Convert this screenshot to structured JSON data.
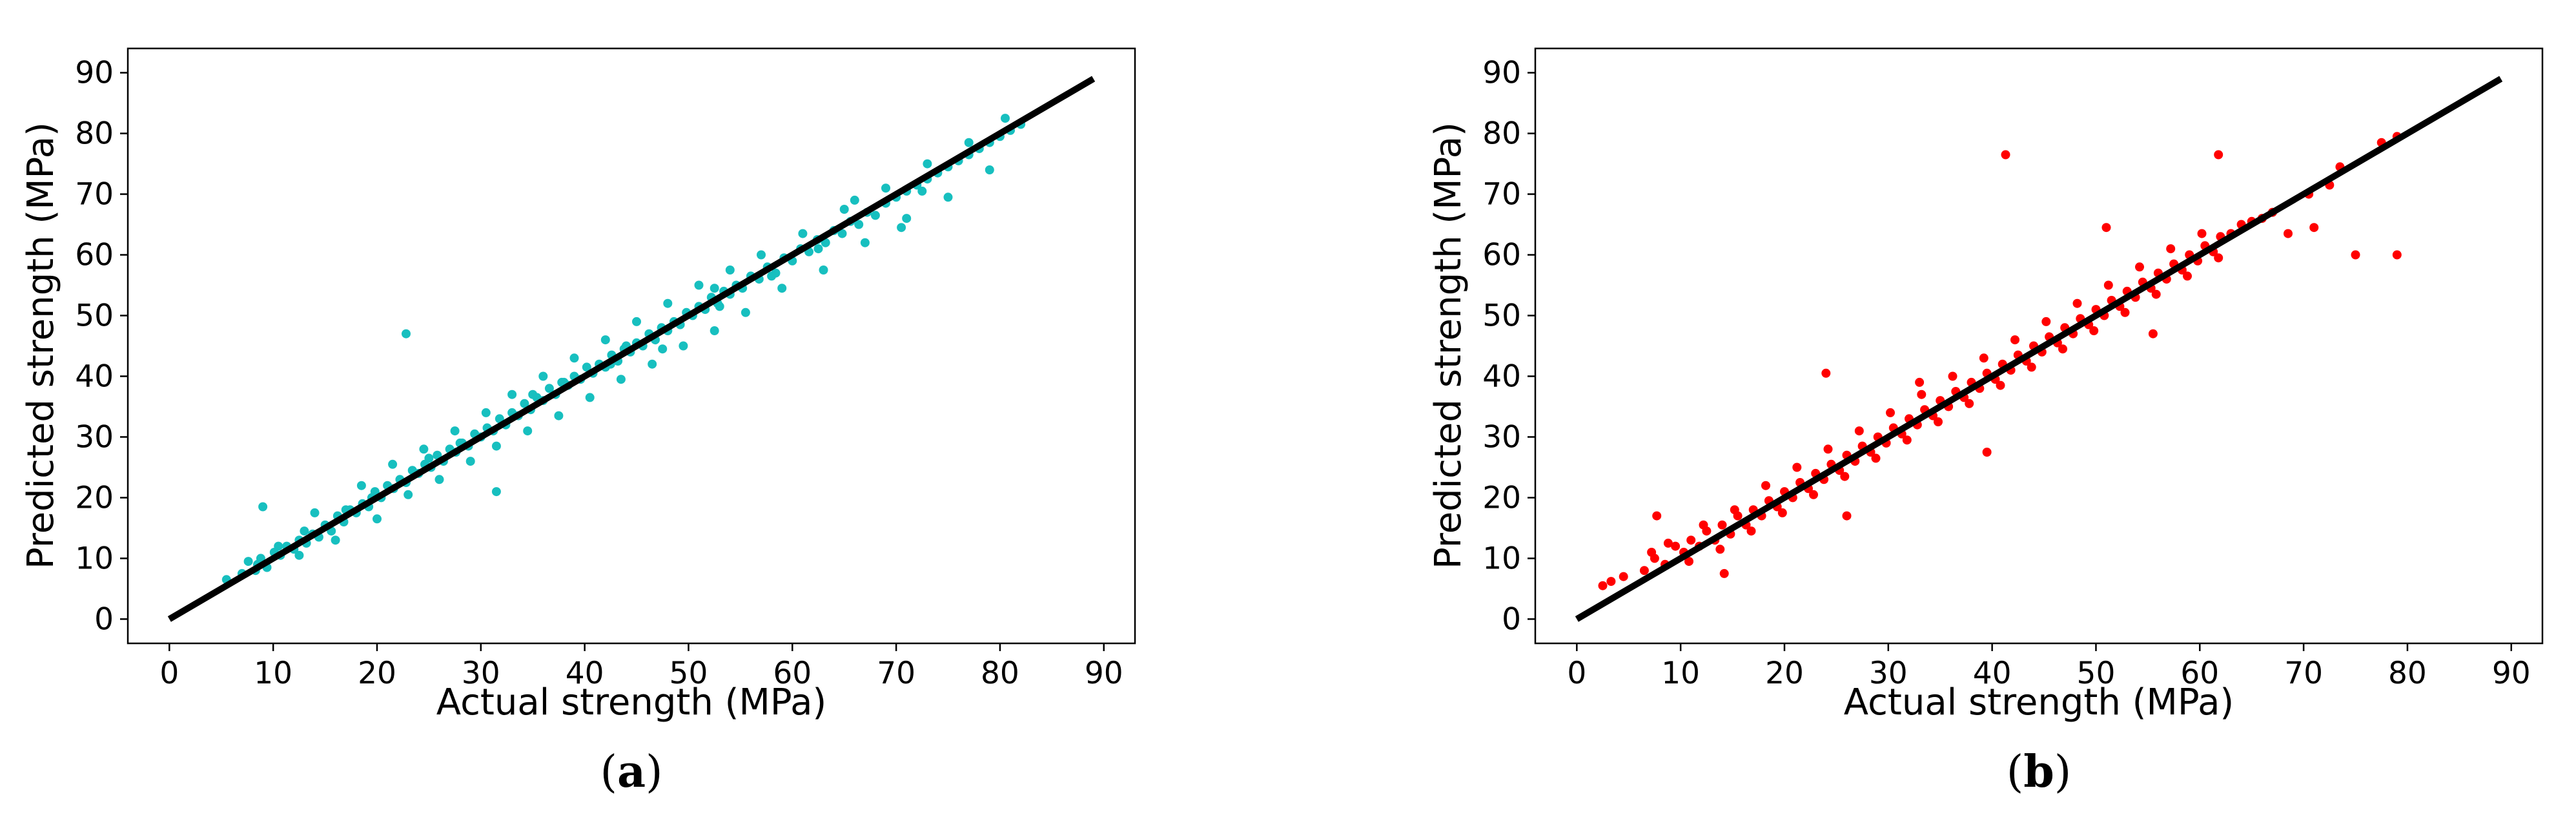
{
  "chart_data": [
    {
      "type": "scatter",
      "panel_label": "a",
      "xlabel": "Actual strength (MPa)",
      "ylabel": "Predicted strength (MPa)",
      "xlim": [
        -4,
        93
      ],
      "ylim": [
        -4,
        94
      ],
      "xticks": [
        0,
        10,
        20,
        30,
        40,
        50,
        60,
        70,
        80,
        90
      ],
      "yticks": [
        0,
        10,
        20,
        30,
        40,
        50,
        60,
        70,
        80,
        90
      ],
      "grid": false,
      "marker_color": "#17BFBF",
      "reference_line": {
        "x": [
          0,
          89
        ],
        "y": [
          0,
          89
        ],
        "color": "#000000"
      },
      "x": [
        5.5,
        7,
        7.6,
        8.3,
        8.8,
        9.4,
        10.1,
        10.7,
        11.3,
        12,
        12.5,
        13.2,
        13.8,
        14.4,
        15,
        15.6,
        16.2,
        16.8,
        17.4,
        18,
        18.6,
        19.2,
        19.8,
        20.4,
        21,
        21.6,
        22.2,
        22.8,
        23.4,
        24,
        24.6,
        25.2,
        25.8,
        26.4,
        27,
        27.6,
        28.2,
        28.8,
        29.4,
        30,
        30.6,
        31.2,
        31.8,
        32.4,
        33,
        33.6,
        34.2,
        34.8,
        35.4,
        36,
        36.6,
        37.2,
        37.8,
        38.4,
        39,
        39.6,
        40.2,
        40.8,
        41.4,
        42,
        42.6,
        43.2,
        43.8,
        44.4,
        45,
        45.6,
        46.2,
        46.8,
        47.4,
        48,
        48.6,
        49.2,
        49.8,
        50.4,
        51,
        51.6,
        52.2,
        52.8,
        53.4,
        54,
        54.6,
        55.2,
        56,
        56.8,
        57.6,
        58.4,
        59.2,
        60,
        60.8,
        61.6,
        62.4,
        63.2,
        64,
        64.8,
        65.6,
        66.4,
        67.2,
        68,
        69,
        70,
        71,
        72,
        73,
        74,
        75,
        76,
        77,
        78,
        79,
        80,
        81,
        82,
        9,
        12.5,
        14,
        16,
        18.5,
        20,
        21.5,
        23,
        24.5,
        26,
        27.5,
        29,
        30.5,
        31.5,
        33,
        34.5,
        36,
        37.5,
        39,
        40.5,
        42,
        43.5,
        45,
        46.5,
        48,
        49.5,
        51,
        52.5,
        54,
        55.5,
        57,
        59,
        61,
        63,
        65,
        67,
        69,
        71,
        73,
        75,
        77,
        79,
        22.8,
        31.5,
        8.5,
        13,
        19.5,
        25,
        35,
        44,
        47.5,
        52.5,
        58,
        66,
        70.5,
        80.5,
        10.5,
        17,
        28,
        38,
        42.5,
        53,
        62.5,
        72.5
      ],
      "y": [
        6.5,
        7.5,
        9.5,
        8,
        10,
        8.5,
        11,
        10.5,
        12,
        11.5,
        13,
        12.5,
        14,
        13.5,
        15.5,
        14.5,
        17,
        16,
        18,
        17.5,
        19,
        18.5,
        21,
        20,
        22,
        21.5,
        23,
        22.5,
        24.5,
        24,
        25.5,
        25,
        27,
        26,
        28,
        27.5,
        29,
        28.5,
        30.5,
        30,
        31.5,
        31,
        33,
        32,
        34,
        33.5,
        35.5,
        34.5,
        36.5,
        36,
        38,
        37,
        39,
        38.5,
        40,
        39.5,
        41.5,
        40.5,
        42,
        41.5,
        43.5,
        42.5,
        44.5,
        44,
        45.5,
        45,
        47,
        46,
        48,
        47.5,
        49,
        48.5,
        50.5,
        50,
        51.5,
        51,
        53,
        52,
        54,
        53.5,
        55,
        54.5,
        56.5,
        56,
        58,
        57,
        59.5,
        59,
        61,
        60.5,
        62.5,
        62,
        64,
        63.5,
        65.5,
        65,
        67,
        66.5,
        68.5,
        69.5,
        70.5,
        71.5,
        72.5,
        73.5,
        74.5,
        75.5,
        76.5,
        77.5,
        78.5,
        79.5,
        80.5,
        81.5,
        18.5,
        10.5,
        17.5,
        13,
        22,
        16.5,
        25.5,
        20.5,
        28,
        23,
        31,
        26,
        34,
        28.5,
        37,
        31,
        40,
        33.5,
        43,
        36.5,
        46,
        39.5,
        49,
        42,
        52,
        45,
        55,
        47.5,
        57.5,
        50.5,
        60,
        54.5,
        63.5,
        57.5,
        67.5,
        62,
        71,
        66,
        75,
        69.5,
        78.5,
        74,
        47,
        21,
        9,
        14.5,
        20,
        26.5,
        37,
        45,
        44.5,
        54.5,
        56.5,
        69,
        64.5,
        82.5,
        12,
        18,
        29,
        39,
        42,
        51.5,
        61,
        70.5
      ]
    },
    {
      "type": "scatter",
      "panel_label": "b",
      "xlabel": "Actual strength (MPa)",
      "ylabel": "Predicted strength (MPa)",
      "xlim": [
        -4,
        93
      ],
      "ylim": [
        -4,
        94
      ],
      "xticks": [
        0,
        10,
        20,
        30,
        40,
        50,
        60,
        70,
        80,
        90
      ],
      "yticks": [
        0,
        10,
        20,
        30,
        40,
        50,
        60,
        70,
        80,
        90
      ],
      "grid": false,
      "marker_color": "#FF0000",
      "reference_line": {
        "x": [
          0,
          89
        ],
        "y": [
          0,
          89
        ],
        "color": "#000000"
      },
      "x": [
        2.5,
        3.3,
        4.5,
        6.5,
        7.5,
        8.5,
        9.5,
        10.3,
        11,
        11.8,
        12.5,
        13.3,
        14,
        14.8,
        15.5,
        16.3,
        17,
        17.8,
        18.5,
        19.3,
        20,
        20.8,
        21.5,
        22.3,
        23,
        23.8,
        24.5,
        25.3,
        26,
        26.8,
        27.5,
        28.3,
        29,
        29.8,
        30.5,
        31.3,
        32,
        32.8,
        33.5,
        34.3,
        35,
        35.8,
        36.5,
        37.3,
        38,
        38.8,
        39.5,
        40.3,
        41,
        41.8,
        42.5,
        43.3,
        44,
        44.8,
        45.5,
        46.3,
        47,
        47.8,
        48.5,
        49.3,
        50,
        50.8,
        51.5,
        52.3,
        53,
        53.8,
        54.5,
        55.3,
        56,
        56.8,
        57.5,
        58.3,
        59,
        59.8,
        60.5,
        61.3,
        62,
        63,
        64,
        65,
        66,
        67,
        68.5,
        70.5,
        72.5,
        73.5,
        77.5,
        79,
        7.2,
        8.8,
        10.8,
        12.2,
        13.8,
        15.2,
        16.8,
        18.2,
        19.8,
        21.2,
        22.8,
        24.2,
        25.8,
        27.2,
        28.8,
        30.2,
        31.8,
        33.2,
        34.8,
        36.2,
        37.8,
        39.2,
        40.8,
        42.2,
        43.8,
        45.2,
        46.8,
        48.2,
        49.8,
        51.2,
        52.8,
        54.2,
        55.8,
        57.2,
        58.8,
        60.2,
        61.8,
        24,
        33,
        41.3,
        55.5,
        61.8,
        75,
        79,
        71,
        51,
        39.5,
        26,
        14.2,
        7.7
      ],
      "y": [
        5.5,
        6.2,
        7,
        8,
        10,
        9,
        12,
        11,
        13,
        12,
        14.5,
        13,
        15.5,
        14,
        17,
        15.5,
        18,
        17,
        19.5,
        18.5,
        21,
        20,
        22.5,
        21.5,
        24,
        23,
        25.5,
        24.5,
        27,
        26,
        28.5,
        27.5,
        30,
        29,
        31.5,
        30.5,
        33,
        32,
        34.5,
        33.5,
        36,
        35,
        37.5,
        36.5,
        39,
        38,
        40.5,
        39.5,
        42,
        41,
        43.5,
        42.5,
        45,
        44,
        46.5,
        45.5,
        48,
        47,
        49.5,
        48.5,
        51,
        50,
        52.5,
        51.5,
        54,
        53,
        55.5,
        54.5,
        57,
        56,
        58.5,
        57.5,
        60,
        59,
        61.5,
        60.5,
        63,
        63.5,
        65,
        65.5,
        66,
        67,
        63.5,
        70,
        71.5,
        74.5,
        78.5,
        79.5,
        11,
        12.5,
        9.5,
        15.5,
        11.5,
        18,
        14.5,
        22,
        17.5,
        25,
        20.5,
        28,
        23.5,
        31,
        26.5,
        34,
        29.5,
        37,
        32.5,
        40,
        35.5,
        43,
        38.5,
        46,
        41.5,
        49,
        44.5,
        52,
        47.5,
        55,
        50.5,
        58,
        53.5,
        61,
        56.5,
        63.5,
        59.5,
        40.5,
        39,
        76.5,
        47,
        76.5,
        60,
        60,
        64.5,
        64.5,
        27.5,
        17,
        7.5,
        17
      ]
    }
  ]
}
